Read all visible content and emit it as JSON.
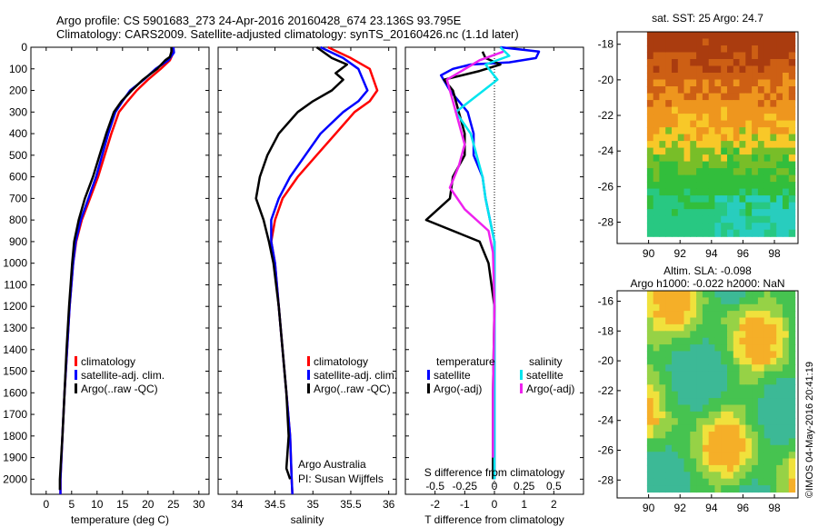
{
  "header": {
    "line1": "Argo profile: CS 5901683_273 24-Apr-2016 20160428_674 23.136S 93.795E",
    "line2": "Climatology: CARS2009. Satellite-adjusted climatology: synTS_20160426.nc (1.1d later)"
  },
  "side_caption": "©IMOS 04-May-2016 20:41:19",
  "colors": {
    "climatology": "#ff0000",
    "satellite": "#0000ff",
    "argo": "#000000",
    "s_satellite": "#00e5ee",
    "s_argo": "#ee22ee"
  },
  "chart_data": [
    {
      "type": "line",
      "panel": "temperature",
      "xlabel": "temperature (deg C)",
      "xlim": [
        -3,
        32
      ],
      "ylim": [
        2070,
        0
      ],
      "xticks": [
        "0",
        "5",
        "10",
        "15",
        "20",
        "25",
        "30"
      ],
      "xtick_values": [
        0,
        5,
        10,
        15,
        20,
        25,
        30
      ],
      "yticks": [
        "0",
        "100",
        "200",
        "300",
        "400",
        "500",
        "600",
        "700",
        "800",
        "900",
        "1000",
        "1100",
        "1200",
        "1300",
        "1400",
        "1500",
        "1600",
        "1700",
        "1800",
        "1900",
        "2000"
      ],
      "ytick_values": [
        0,
        100,
        200,
        300,
        400,
        500,
        600,
        700,
        800,
        900,
        1000,
        1100,
        1200,
        1300,
        1400,
        1500,
        1600,
        1700,
        1800,
        1900,
        2000
      ],
      "legend": [
        "climatology",
        "satellite-adj. clim.",
        "Argo(..raw -QC)"
      ],
      "series": [
        {
          "name": "climatology",
          "color_key": "climatology",
          "points": [
            [
              24.8,
              0
            ],
            [
              24.9,
              30
            ],
            [
              24.3,
              60
            ],
            [
              22.5,
              100
            ],
            [
              20.0,
              150
            ],
            [
              17.8,
              200
            ],
            [
              16.0,
              250
            ],
            [
              14.3,
              300
            ],
            [
              12.8,
              400
            ],
            [
              11.5,
              500
            ],
            [
              10.2,
              600
            ],
            [
              8.6,
              700
            ],
            [
              7.0,
              800
            ],
            [
              5.9,
              900
            ],
            [
              5.3,
              1000
            ],
            [
              4.6,
              1200
            ],
            [
              4.1,
              1400
            ],
            [
              3.6,
              1600
            ],
            [
              3.2,
              1800
            ],
            [
              2.8,
              2000
            ],
            [
              2.8,
              2070
            ]
          ]
        },
        {
          "name": "satellite-adj. clim.",
          "color_key": "satellite",
          "points": [
            [
              25.0,
              0
            ],
            [
              25.1,
              25
            ],
            [
              24.0,
              60
            ],
            [
              21.5,
              100
            ],
            [
              19.2,
              150
            ],
            [
              16.5,
              200
            ],
            [
              15.0,
              250
            ],
            [
              13.6,
              300
            ],
            [
              12.2,
              400
            ],
            [
              11.0,
              500
            ],
            [
              9.8,
              600
            ],
            [
              8.3,
              700
            ],
            [
              6.8,
              800
            ],
            [
              5.8,
              900
            ],
            [
              5.3,
              1000
            ],
            [
              4.6,
              1200
            ],
            [
              4.1,
              1400
            ],
            [
              3.6,
              1600
            ],
            [
              3.2,
              1800
            ],
            [
              2.8,
              2000
            ],
            [
              2.8,
              2070
            ]
          ]
        },
        {
          "name": "Argo(..raw -QC)",
          "color_key": "argo",
          "points": [
            [
              24.6,
              0
            ],
            [
              24.6,
              20
            ],
            [
              24.3,
              45
            ],
            [
              23.4,
              60
            ],
            [
              21.8,
              100
            ],
            [
              19.0,
              150
            ],
            [
              16.8,
              200
            ],
            [
              14.8,
              250
            ],
            [
              13.3,
              300
            ],
            [
              11.8,
              400
            ],
            [
              10.5,
              500
            ],
            [
              9.2,
              600
            ],
            [
              7.6,
              700
            ],
            [
              6.4,
              800
            ],
            [
              5.5,
              900
            ],
            [
              5.1,
              1000
            ],
            [
              4.5,
              1200
            ],
            [
              4.0,
              1400
            ],
            [
              3.6,
              1600
            ],
            [
              3.2,
              1800
            ],
            [
              2.7,
              2000
            ],
            [
              2.7,
              2050
            ]
          ]
        }
      ]
    },
    {
      "type": "line",
      "panel": "salinity",
      "xlabel": "salinity",
      "xlim": [
        33.75,
        36.1
      ],
      "ylim": [
        2070,
        0
      ],
      "xticks": [
        "34",
        "34.5",
        "35",
        "35.5",
        "36"
      ],
      "xtick_values": [
        34,
        34.5,
        35,
        35.5,
        36
      ],
      "legend": [
        "climatology",
        "satellite-adj. clim.",
        "Argo(..raw -QC)"
      ],
      "credit": [
        "Argo Australia",
        "PI: Susan Wijffels"
      ],
      "series": [
        {
          "name": "climatology",
          "color_key": "climatology",
          "points": [
            [
              35.2,
              0
            ],
            [
              35.5,
              50
            ],
            [
              35.75,
              100
            ],
            [
              35.85,
              200
            ],
            [
              35.75,
              250
            ],
            [
              35.55,
              300
            ],
            [
              35.3,
              400
            ],
            [
              35.05,
              500
            ],
            [
              34.8,
              600
            ],
            [
              34.6,
              700
            ],
            [
              34.5,
              800
            ],
            [
              34.45,
              900
            ],
            [
              34.5,
              1000
            ],
            [
              34.55,
              1200
            ],
            [
              34.6,
              1400
            ],
            [
              34.65,
              1600
            ],
            [
              34.7,
              1800
            ],
            [
              34.72,
              2000
            ],
            [
              34.73,
              2070
            ]
          ]
        },
        {
          "name": "satellite-adj. clim.",
          "color_key": "satellite",
          "points": [
            [
              35.1,
              0
            ],
            [
              35.4,
              50
            ],
            [
              35.6,
              100
            ],
            [
              35.72,
              200
            ],
            [
              35.6,
              250
            ],
            [
              35.4,
              300
            ],
            [
              35.1,
              400
            ],
            [
              34.9,
              500
            ],
            [
              34.7,
              600
            ],
            [
              34.55,
              700
            ],
            [
              34.45,
              800
            ],
            [
              34.45,
              900
            ],
            [
              34.5,
              1000
            ],
            [
              34.55,
              1200
            ],
            [
              34.6,
              1400
            ],
            [
              34.65,
              1600
            ],
            [
              34.7,
              1800
            ],
            [
              34.72,
              2000
            ],
            [
              34.73,
              2070
            ]
          ]
        },
        {
          "name": "Argo(..raw -QC)",
          "color_key": "argo",
          "points": [
            [
              35.05,
              0
            ],
            [
              35.25,
              50
            ],
            [
              35.45,
              80
            ],
            [
              35.3,
              120
            ],
            [
              35.4,
              150
            ],
            [
              35.25,
              200
            ],
            [
              35.0,
              250
            ],
            [
              34.8,
              300
            ],
            [
              34.55,
              400
            ],
            [
              34.4,
              500
            ],
            [
              34.3,
              600
            ],
            [
              34.25,
              700
            ],
            [
              34.35,
              800
            ],
            [
              34.42,
              900
            ],
            [
              34.48,
              1000
            ],
            [
              34.55,
              1200
            ],
            [
              34.6,
              1400
            ],
            [
              34.65,
              1600
            ],
            [
              34.68,
              1800
            ],
            [
              34.65,
              1950
            ],
            [
              34.7,
              2000
            ]
          ]
        }
      ]
    },
    {
      "type": "line",
      "panel": "difference",
      "xlabel": "T difference from climatology",
      "xlabel_top": "S difference from climatology",
      "xlim": [
        -3,
        3
      ],
      "ylim": [
        2070,
        0
      ],
      "xticks": [
        "-2",
        "-1",
        "0",
        "1",
        "2"
      ],
      "xtick_values": [
        -2,
        -1,
        0,
        1,
        2
      ],
      "s_ticks": [
        "-0.5",
        "-0.25",
        "0",
        "0.25",
        "0.5"
      ],
      "s_tick_values": [
        -2,
        -1,
        0,
        1,
        2
      ],
      "legend_left_title": "temperature",
      "legend_right_title": "salinity",
      "legend": [
        "satellite",
        "Argo(-adj)",
        "satellite",
        "Argo(-adj)"
      ],
      "series": [
        {
          "name": "T satellite",
          "color_key": "satellite",
          "points": [
            [
              0.2,
              0
            ],
            [
              1.5,
              20
            ],
            [
              1.4,
              50
            ],
            [
              0.5,
              70
            ],
            [
              -0.8,
              80
            ],
            [
              -1.4,
              100
            ],
            [
              -1.8,
              130
            ],
            [
              -1.5,
              200
            ],
            [
              -0.9,
              300
            ],
            [
              -0.7,
              400
            ],
            [
              -0.7,
              500
            ],
            [
              -0.4,
              600
            ],
            [
              -0.3,
              700
            ],
            [
              -0.15,
              800
            ],
            [
              0,
              900
            ],
            [
              0,
              1200
            ],
            [
              0,
              1600
            ],
            [
              0,
              2000
            ]
          ]
        },
        {
          "name": "T Argo(-adj)",
          "color_key": "argo",
          "points": [
            [
              -0.4,
              20
            ],
            [
              -0.3,
              50
            ],
            [
              0.2,
              80
            ],
            [
              -0.5,
              110
            ],
            [
              -1.7,
              150
            ],
            [
              -1.4,
              200
            ],
            [
              -1.2,
              300
            ],
            [
              -1.0,
              400
            ],
            [
              -1.0,
              500
            ],
            [
              -1.4,
              600
            ],
            [
              -1.5,
              700
            ],
            [
              -2.3,
              800
            ],
            [
              -0.5,
              900
            ],
            [
              -0.2,
              1000
            ],
            [
              0,
              1200
            ],
            [
              -0.05,
              1600
            ],
            [
              -0.05,
              2000
            ]
          ]
        },
        {
          "name": "S satellite",
          "color_key": "s_satellite",
          "points": [
            [
              0.2,
              0
            ],
            [
              0.5,
              40
            ],
            [
              -0.3,
              80
            ],
            [
              0.1,
              150
            ],
            [
              -1.3,
              300
            ],
            [
              -0.8,
              400
            ],
            [
              -0.6,
              500
            ],
            [
              -0.4,
              600
            ],
            [
              -0.3,
              700
            ],
            [
              -0.15,
              800
            ],
            [
              0,
              900
            ],
            [
              0,
              1200
            ],
            [
              0,
              1600
            ],
            [
              0,
              2000
            ]
          ]
        },
        {
          "name": "S Argo(-adj)",
          "color_key": "s_argo",
          "points": [
            [
              0.3,
              20
            ],
            [
              -0.5,
              60
            ],
            [
              -1.6,
              150
            ],
            [
              -1.4,
              250
            ],
            [
              -1.2,
              350
            ],
            [
              -1.0,
              450
            ],
            [
              -1.2,
              550
            ],
            [
              -1.5,
              650
            ],
            [
              -1.0,
              750
            ],
            [
              -0.2,
              850
            ],
            [
              -0.05,
              950
            ],
            [
              0,
              1200
            ],
            [
              -0.05,
              1600
            ],
            [
              -0.05,
              1900
            ]
          ]
        }
      ]
    },
    {
      "type": "heatmap",
      "panel": "sst-map",
      "title": "sat. SST: 25 Argo: 24.7",
      "xlim": [
        88,
        99.5
      ],
      "ylim": [
        -29.2,
        -17.3
      ],
      "xticks": [
        "90",
        "92",
        "94",
        "96",
        "98"
      ],
      "xtick_values": [
        90,
        92,
        94,
        96,
        98
      ],
      "yticks": [
        "-18",
        "-20",
        "-22",
        "-24",
        "-26",
        "-28"
      ],
      "ytick_values": [
        -18,
        -20,
        -22,
        -24,
        -26,
        -28
      ]
    },
    {
      "type": "heatmap",
      "panel": "sla-map",
      "title_line1": "Altim. SLA: -0.098",
      "title_line2": "Argo h1000: -0.022 h2000: NaN",
      "xlim": [
        88,
        99.5
      ],
      "ylim": [
        -29.2,
        -15.3
      ],
      "xticks": [
        "90",
        "92",
        "94",
        "96",
        "98"
      ],
      "xtick_values": [
        90,
        92,
        94,
        96,
        98
      ],
      "yticks": [
        "-16",
        "-18",
        "-20",
        "-22",
        "-24",
        "-26",
        "-28"
      ],
      "ytick_values": [
        -16,
        -18,
        -20,
        -22,
        -24,
        -26,
        -28
      ]
    }
  ]
}
